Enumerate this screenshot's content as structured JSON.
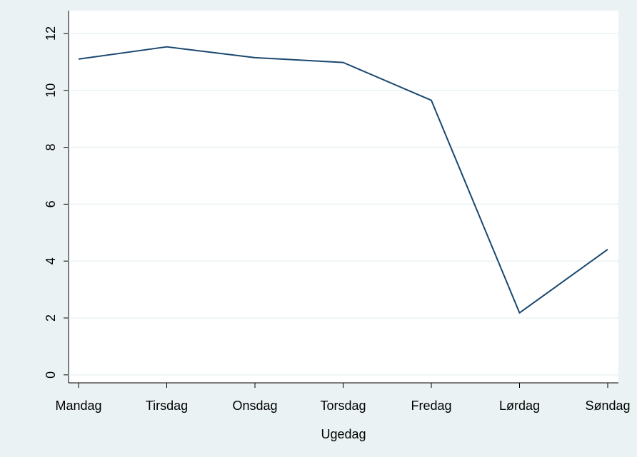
{
  "chart_data": {
    "type": "line",
    "x_label": "Ugedag",
    "categories": [
      "Mandag",
      "Tirsdag",
      "Onsdag",
      "Torsdag",
      "Fredag",
      "Lørdag",
      "Søndag"
    ],
    "series": [
      {
        "color": "#1a476f",
        "values": [
          11.1,
          11.53,
          11.15,
          10.98,
          9.65,
          2.18,
          4.41
        ]
      }
    ],
    "ylim": [
      -0.28,
      12.8
    ],
    "yticks": [
      0,
      2,
      4,
      6,
      8,
      10,
      12
    ],
    "grid": true
  }
}
